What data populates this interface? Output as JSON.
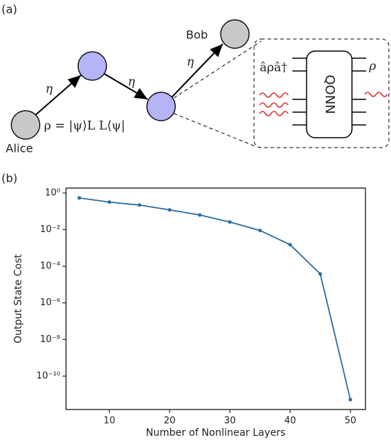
{
  "diagram": {
    "panel_a": "(a)",
    "panel_b": "(b)",
    "alice": "Alice",
    "bob": "Bob",
    "eta_1": "η",
    "eta_2": "η",
    "eta_3": "η",
    "state": "ρ = |ψ⟩L L⟨ψ|",
    "input_op": "âρâ†",
    "output_rho": "ρ",
    "qonn": "QONN"
  },
  "chart_data": {
    "type": "line",
    "xlabel": "Number of Nonlinear Layers",
    "ylabel": "Output State Cost",
    "x": [
      5,
      10,
      15,
      20,
      25,
      30,
      35,
      40,
      45,
      50
    ],
    "values": [
      0.54,
      0.32,
      0.22,
      0.12,
      0.063,
      0.026,
      0.009,
      0.0015,
      3.8e-05,
      5.2e-12
    ],
    "color": "#2b6ca3",
    "xlim": [
      2.8,
      52.5
    ],
    "xticks": [
      10,
      20,
      30,
      40,
      50
    ],
    "ylim": [
      1.5e-12,
      1.86
    ],
    "log_y": true,
    "yticks": [
      {
        "value": 1,
        "label": "10⁰"
      },
      {
        "value": 0.01,
        "label": "10⁻²"
      },
      {
        "value": 0.0001,
        "label": "10⁻⁴"
      },
      {
        "value": 1e-06,
        "label": "10⁻⁶"
      },
      {
        "value": 1e-08,
        "label": "10⁻⁸"
      },
      {
        "value": 1e-10,
        "label": "10⁻¹⁰"
      }
    ]
  }
}
